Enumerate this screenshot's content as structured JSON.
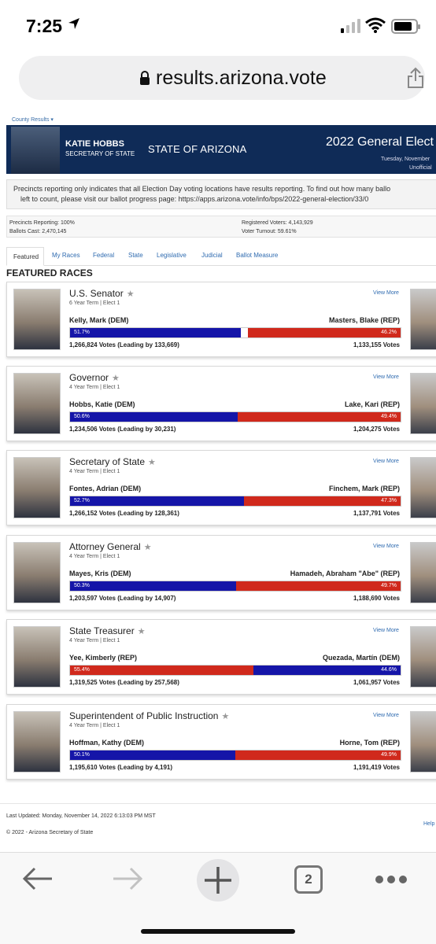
{
  "status_bar": {
    "time": "7:25"
  },
  "browser": {
    "url": "results.arizona.vote",
    "tabs_count": "2"
  },
  "page": {
    "county_link": "County Results",
    "banner": {
      "name": "KATIE HOBBS",
      "role": "SECRETARY OF STATE",
      "state": "STATE OF ARIZONA",
      "election": "2022 General Elect",
      "date": "Tuesday, November",
      "status": "Unofficial"
    },
    "notice": {
      "line1": "Precincts reporting only indicates that all Election Day voting locations have results reporting. To find out how many ballo",
      "line2": "left to count, please visit our ballot progress page: https://apps.arizona.vote/info/bps/2022-general-election/33/0"
    },
    "stats": {
      "precincts": "Precincts Reporting: 100%",
      "ballots": "Ballots Cast: 2,470,145",
      "registered": "Registered Voters: 4,143,929",
      "turnout": "Voter Turnout: 59.61%"
    },
    "tabs": [
      "Featured",
      "My Races",
      "Federal",
      "State",
      "Legislative",
      "Judicial",
      "Ballot Measure"
    ],
    "featured_title": "FEATURED RACES",
    "view_more": "View More",
    "races": [
      {
        "title": "U.S. Senator",
        "term": "6 Year Term  |  Elect 1",
        "left_name": "Kelly, Mark (DEM)",
        "left_party": "dem",
        "left_pct": "51.7%",
        "left_share": 51.7,
        "right_name": "Masters, Blake (REP)",
        "right_party": "rep",
        "right_pct": "46.2%",
        "right_share": 46.2,
        "left_votes": "1,266,824 Votes   (Leading by 133,669)",
        "right_votes": "1,133,155 Votes"
      },
      {
        "title": "Governor",
        "term": "4 Year Term  |  Elect 1",
        "left_name": "Hobbs, Katie (DEM)",
        "left_party": "dem",
        "left_pct": "50.6%",
        "left_share": 50.6,
        "right_name": "Lake, Kari (REP)",
        "right_party": "rep",
        "right_pct": "49.4%",
        "right_share": 49.4,
        "left_votes": "1,234,506 Votes   (Leading by 30,231)",
        "right_votes": "1,204,275 Votes"
      },
      {
        "title": "Secretary of State",
        "term": "4 Year Term  |  Elect 1",
        "left_name": "Fontes, Adrian (DEM)",
        "left_party": "dem",
        "left_pct": "52.7%",
        "left_share": 52.7,
        "right_name": "Finchem, Mark (REP)",
        "right_party": "rep",
        "right_pct": "47.3%",
        "right_share": 47.3,
        "left_votes": "1,266,152 Votes   (Leading by 128,361)",
        "right_votes": "1,137,791 Votes"
      },
      {
        "title": "Attorney General",
        "term": "4 Year Term  |  Elect 1",
        "left_name": "Mayes, Kris (DEM)",
        "left_party": "dem",
        "left_pct": "50.3%",
        "left_share": 50.3,
        "right_name": "Hamadeh, Abraham \"Abe\" (REP)",
        "right_party": "rep",
        "right_pct": "49.7%",
        "right_share": 49.7,
        "left_votes": "1,203,597 Votes   (Leading by 14,907)",
        "right_votes": "1,188,690 Votes"
      },
      {
        "title": "State Treasurer",
        "term": "4 Year Term  |  Elect 1",
        "left_name": "Yee, Kimberly (REP)",
        "left_party": "rep",
        "left_pct": "55.4%",
        "left_share": 55.4,
        "right_name": "Quezada, Martín (DEM)",
        "right_party": "dem",
        "right_pct": "44.6%",
        "right_share": 44.6,
        "left_votes": "1,319,525 Votes   (Leading by 257,568)",
        "right_votes": "1,061,957 Votes"
      },
      {
        "title": "Superintendent of Public Instruction",
        "term": "4 Year Term  |  Elect 1",
        "left_name": "Hoffman, Kathy (DEM)",
        "left_party": "dem",
        "left_pct": "50.1%",
        "left_share": 50.1,
        "right_name": "Horne, Tom (REP)",
        "right_party": "rep",
        "right_pct": "49.9%",
        "right_share": 49.9,
        "left_votes": "1,195,610 Votes   (Leading by 4,191)",
        "right_votes": "1,191,419 Votes"
      }
    ],
    "last_updated": "Last Updated:  Monday, November 14, 2022 6:13:03 PM MST",
    "help": "Help",
    "copyright": "© 2022 - Arizona Secretary of State"
  },
  "colors": {
    "dem": "#1515a8",
    "rep": "#d0291c",
    "banner": "#0f2b57",
    "link": "#2f6bb0"
  },
  "icons": [
    "location-arrow-icon",
    "signal-icon",
    "wifi-icon",
    "battery-icon",
    "lock-icon",
    "share-icon",
    "back-arrow-icon",
    "forward-arrow-icon",
    "plus-icon",
    "more-icon",
    "star-icon",
    "chevron-down-icon"
  ]
}
